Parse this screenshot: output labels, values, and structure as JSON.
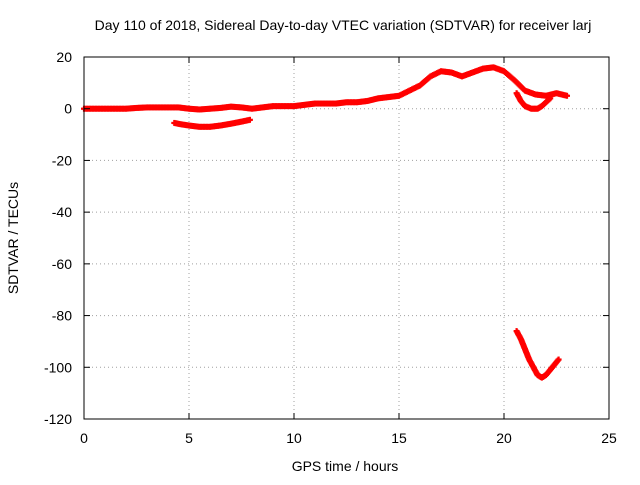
{
  "chart_data": {
    "type": "scatter",
    "title": "Day 110 of 2018, Sidereal Day-to-day VTEC variation (SDTVAR) for receiver larj",
    "xlabel": "GPS time / hours",
    "ylabel": "SDTVAR / TECUs",
    "xlim": [
      0,
      25
    ],
    "ylim": [
      -120,
      20
    ],
    "xticks": [
      0,
      5,
      10,
      15,
      20,
      25
    ],
    "yticks": [
      20,
      0,
      -20,
      -40,
      -60,
      -80,
      -100,
      -120
    ],
    "grid": true,
    "legend": "none",
    "marker": "plus",
    "color": "#ff0000",
    "series": [
      {
        "x": [
          0.0,
          0.5,
          1.0,
          1.5,
          2.0,
          2.5,
          3.0,
          3.5,
          4.0,
          4.5,
          5.0,
          5.5,
          6.0,
          6.5,
          7.0,
          7.5,
          8.0,
          8.5,
          9.0,
          9.5,
          10.0,
          10.5,
          11.0,
          11.5,
          12.0,
          12.5,
          13.0,
          13.5,
          14.0,
          14.5,
          15.0,
          15.5,
          16.0,
          16.5,
          17.0,
          17.5,
          18.0,
          18.5,
          19.0,
          19.5,
          20.0,
          20.5,
          21.0,
          21.5,
          22.0,
          22.5,
          23.0
        ],
        "y": [
          0.0,
          0.0,
          0.0,
          0.0,
          0.0,
          0.3,
          0.5,
          0.5,
          0.5,
          0.5,
          0.0,
          -0.3,
          0.0,
          0.3,
          0.8,
          0.5,
          0.0,
          0.5,
          1.0,
          1.0,
          1.0,
          1.5,
          2.0,
          2.0,
          2.0,
          2.5,
          2.5,
          3.0,
          4.0,
          4.5,
          5.0,
          7.0,
          9.0,
          12.5,
          14.5,
          14.0,
          12.5,
          14.0,
          15.5,
          16.0,
          14.5,
          11.0,
          7.0,
          5.5,
          5.0,
          6.0,
          5.0
        ]
      },
      {
        "x": [
          4.3,
          4.6,
          5.0,
          5.5,
          6.0,
          6.5,
          7.0,
          7.5,
          7.9
        ],
        "y": [
          -5.5,
          -6.0,
          -6.5,
          -7.0,
          -7.0,
          -6.5,
          -5.8,
          -5.0,
          -4.3
        ]
      },
      {
        "x": [
          20.6,
          20.8,
          21.0,
          21.3,
          21.6,
          21.8,
          22.0,
          22.2
        ],
        "y": [
          6.0,
          3.0,
          1.0,
          0.0,
          0.0,
          1.0,
          2.5,
          4.0
        ]
      },
      {
        "x": [
          20.6,
          20.8,
          21.0,
          21.2,
          21.4,
          21.6,
          21.8,
          22.0,
          22.2,
          22.4,
          22.6
        ],
        "y": [
          -86.0,
          -89.0,
          -93.0,
          -97.0,
          -100.0,
          -103.0,
          -104.0,
          -103.0,
          -101.0,
          -99.0,
          -97.0
        ]
      }
    ]
  }
}
